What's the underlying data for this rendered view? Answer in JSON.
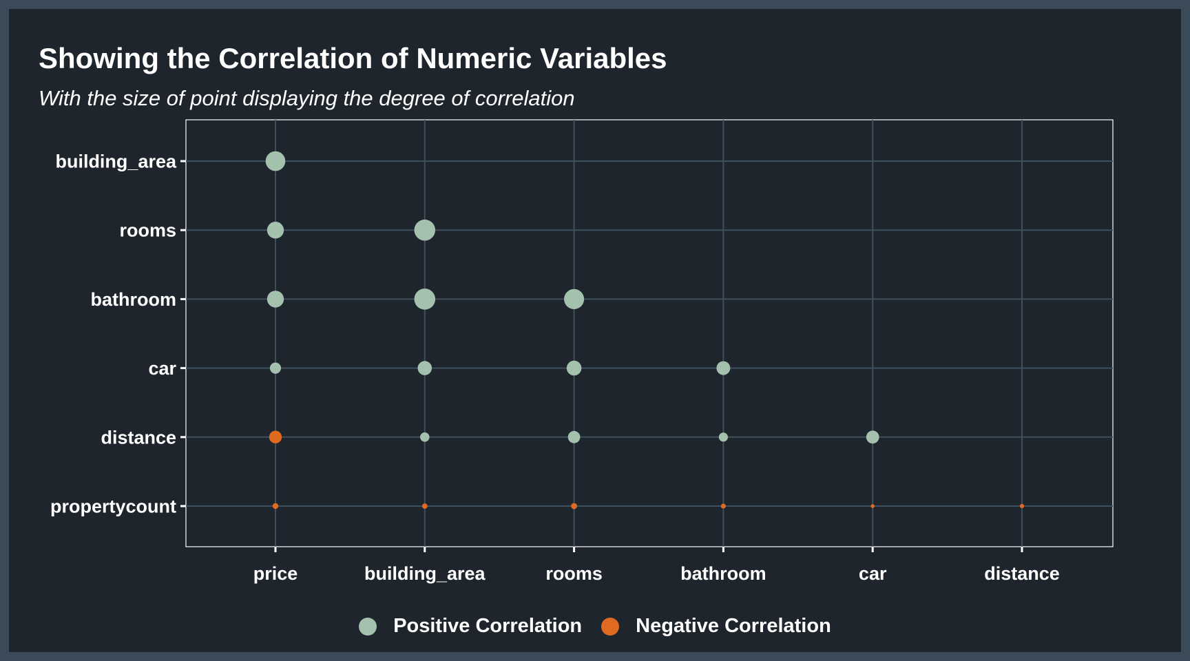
{
  "chart_data": {
    "type": "scatter",
    "title": "Showing the Correlation of Numeric Variables",
    "subtitle": "With the size of point displaying the degree of correlation",
    "x_categories": [
      "price",
      "building_area",
      "rooms",
      "bathroom",
      "car",
      "distance"
    ],
    "y_categories": [
      "building_area",
      "rooms",
      "bathroom",
      "car",
      "distance",
      "propertycount"
    ],
    "points": [
      {
        "x": "price",
        "y": "building_area",
        "r": 0.77
      },
      {
        "x": "price",
        "y": "rooms",
        "r": 0.64
      },
      {
        "x": "price",
        "y": "bathroom",
        "r": 0.64
      },
      {
        "x": "price",
        "y": "car",
        "r": 0.38
      },
      {
        "x": "price",
        "y": "distance",
        "r": -0.45
      },
      {
        "x": "price",
        "y": "propertycount",
        "r": -0.14
      },
      {
        "x": "building_area",
        "y": "rooms",
        "r": 0.83
      },
      {
        "x": "building_area",
        "y": "bathroom",
        "r": 0.83
      },
      {
        "x": "building_area",
        "y": "car",
        "r": 0.52
      },
      {
        "x": "building_area",
        "y": "distance",
        "r": 0.3
      },
      {
        "x": "building_area",
        "y": "propertycount",
        "r": -0.12
      },
      {
        "x": "rooms",
        "y": "bathroom",
        "r": 0.79
      },
      {
        "x": "rooms",
        "y": "car",
        "r": 0.55
      },
      {
        "x": "rooms",
        "y": "distance",
        "r": 0.43
      },
      {
        "x": "rooms",
        "y": "propertycount",
        "r": -0.15
      },
      {
        "x": "bathroom",
        "y": "car",
        "r": 0.5
      },
      {
        "x": "bathroom",
        "y": "distance",
        "r": 0.29
      },
      {
        "x": "bathroom",
        "y": "propertycount",
        "r": -0.1
      },
      {
        "x": "car",
        "y": "distance",
        "r": 0.46
      },
      {
        "x": "car",
        "y": "propertycount",
        "r": -0.05
      },
      {
        "x": "distance",
        "y": "propertycount",
        "r": -0.07
      }
    ],
    "legend": {
      "positive_label": "Positive Correlation",
      "negative_label": "Negative Correlation"
    },
    "legend_position": "bottom",
    "grid": true,
    "colors": {
      "positive": "#a3c1ad",
      "negative": "#e06a20",
      "background": "#1f252d",
      "frame": "#3b4b5a",
      "grid": "#3e4f5d",
      "text": "#ffffff"
    }
  }
}
